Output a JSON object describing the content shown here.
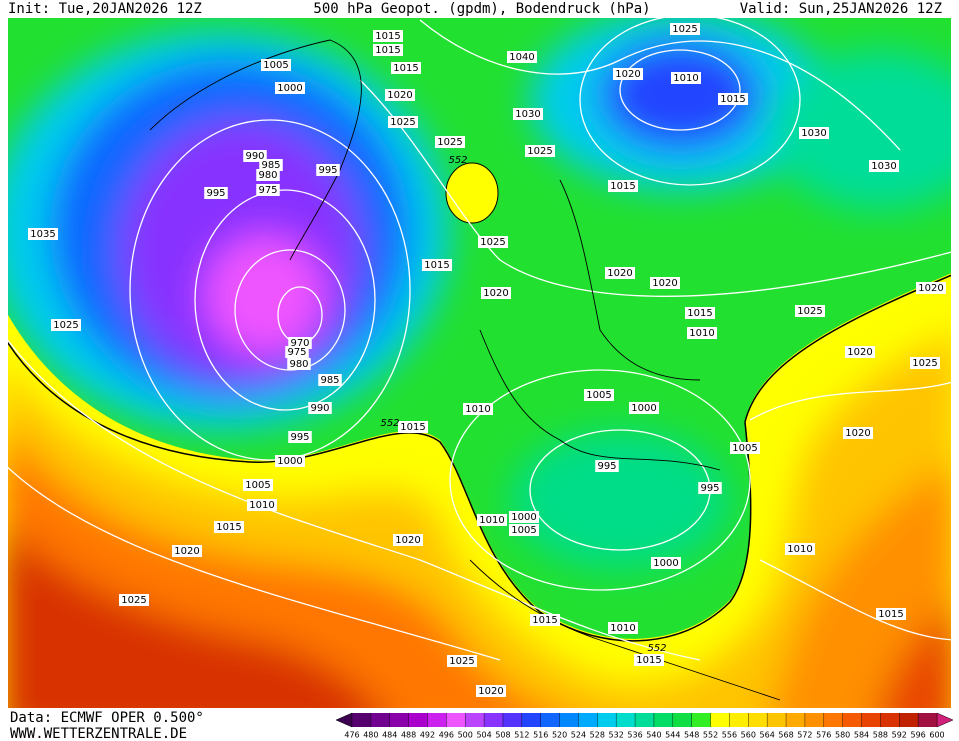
{
  "header": {
    "init": "Init: Tue,20JAN2026 12Z",
    "title": "500 hPa Geopot. (gpdm), Bodendruck (hPa)",
    "valid": "Valid: Sun,25JAN2026 12Z"
  },
  "footer": {
    "data": "Data: ECMWF OPER 0.500°",
    "site": "WWW.WETTERZENTRALE.DE"
  },
  "colorbar": {
    "levels": [
      476,
      480,
      484,
      488,
      492,
      496,
      500,
      504,
      508,
      512,
      516,
      520,
      524,
      528,
      532,
      536,
      540,
      544,
      548,
      552,
      556,
      560,
      564,
      568,
      572,
      576,
      580,
      584,
      588,
      592,
      596,
      600
    ],
    "colors": [
      "#3c0050",
      "#560070",
      "#700090",
      "#8a00aa",
      "#aa00cc",
      "#cc22ee",
      "#ee55ff",
      "#bb44ff",
      "#8833ff",
      "#5533ff",
      "#2244ff",
      "#1166ff",
      "#0088ff",
      "#00aaff",
      "#00ccee",
      "#00ddcc",
      "#00dd99",
      "#00dd66",
      "#11dd44",
      "#33ee22",
      "#ffff00",
      "#ffee00",
      "#ffdd00",
      "#ffc400",
      "#ffaa00",
      "#ff9000",
      "#ff7700",
      "#f55a00",
      "#e84400",
      "#d83300",
      "#c02200",
      "#a01040",
      "#d0207a"
    ]
  },
  "isobar_labels": [
    "1015",
    "1015",
    "1005",
    "1000",
    "1015",
    "1020",
    "1025",
    "1025",
    "1040",
    "1030",
    "1025",
    "1025",
    "1020",
    "1010",
    "1015",
    "1030",
    "1030",
    "1015",
    "990",
    "985",
    "980",
    "975",
    "995",
    "995",
    "1035",
    "1025",
    "1015",
    "1020",
    "1020",
    "1020",
    "1015",
    "1010",
    "1025",
    "1020",
    "1020",
    "1025",
    "1025",
    "970",
    "975",
    "980",
    "985",
    "990",
    "995",
    "1000",
    "1005",
    "1010",
    "1015",
    "1020",
    "1025",
    "1015",
    "1010",
    "1005",
    "1000",
    "1005",
    "1020",
    "995",
    "995",
    "1010",
    "1000",
    "1005",
    "1020",
    "1010",
    "1000",
    "1015",
    "1010",
    "1015",
    "1025",
    "1020",
    "1015"
  ],
  "contour_labels": [
    "552",
    "552",
    "552"
  ]
}
